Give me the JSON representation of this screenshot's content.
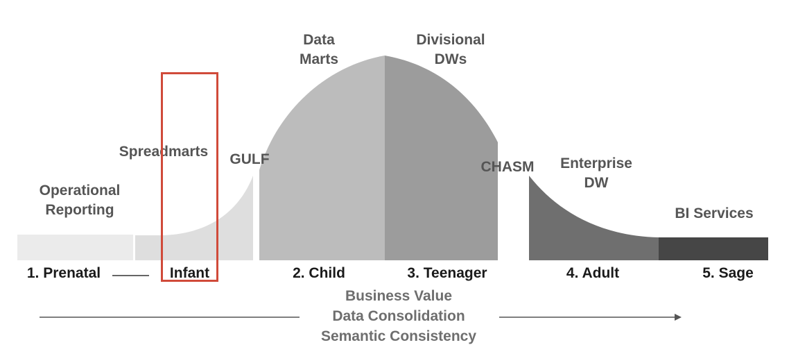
{
  "curve_labels": {
    "operational_reporting": [
      "Operational",
      "Reporting"
    ],
    "spreadmarts": "Spreadmarts",
    "gulf": "GULF",
    "data_marts": [
      "Data",
      "Marts"
    ],
    "divisional_dws": [
      "Divisional",
      "DWs"
    ],
    "chasm": "CHASM",
    "enterprise_dw": [
      "Enterprise",
      "DW"
    ],
    "bi_services": "BI Services"
  },
  "stages": {
    "prenatal": "1. Prenatal",
    "infant": "Infant",
    "child": "2. Child",
    "teenager": "3. Teenager",
    "adult": "4. Adult",
    "sage": "5. Sage"
  },
  "axis": {
    "line1": "Business Value",
    "line2": "Data Consolidation",
    "line3": "Semantic Consistency"
  },
  "colors": {
    "prenatal": "#ebebeb",
    "infant": "#dedede",
    "child": "#bcbcbc",
    "teenager": "#9c9c9c",
    "adult": "#6f6f6f",
    "sage": "#464646",
    "highlight": "#d04a3a"
  }
}
